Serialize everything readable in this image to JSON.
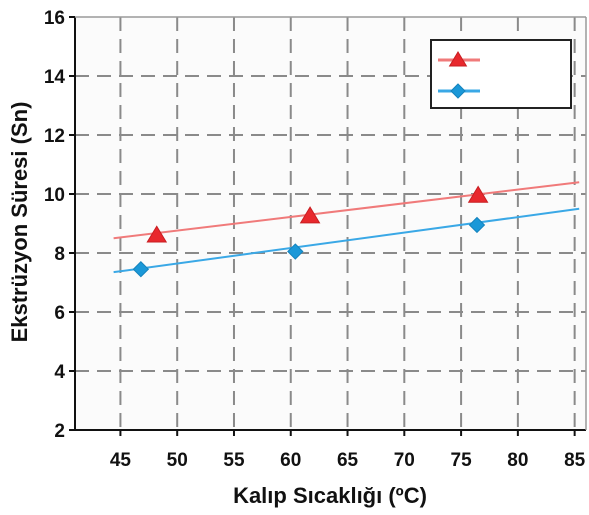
{
  "chart_data": {
    "type": "scatter",
    "title": "",
    "xlabel": "Kalıp Sıcaklığı (ºC)",
    "ylabel": "Ekstrüzyon Süresi (Sn)",
    "xlim": [
      41,
      86
    ],
    "ylim": [
      2,
      16
    ],
    "xticks": [
      "45",
      "50",
      "55",
      "60",
      "65",
      "70",
      "75",
      "80",
      "85"
    ],
    "yticks": [
      "2",
      "4",
      "6",
      "8",
      "10",
      "12",
      "14",
      "16"
    ],
    "grid": true,
    "legend_position": "top-right",
    "series": [
      {
        "marker": "triangle",
        "color": "#e8282d",
        "line_color": "#f07a7a",
        "points": [
          {
            "x": 48.2,
            "y": 8.6
          },
          {
            "x": 61.7,
            "y": 9.25
          },
          {
            "x": 76.5,
            "y": 9.95
          }
        ],
        "trend": [
          {
            "x": 44.4,
            "y": 8.5
          },
          {
            "x": 85.4,
            "y": 10.4
          }
        ]
      },
      {
        "marker": "diamond",
        "color": "#1b98d8",
        "line_color": "#3aa8e6",
        "points": [
          {
            "x": 46.8,
            "y": 7.45
          },
          {
            "x": 60.4,
            "y": 8.05
          },
          {
            "x": 76.4,
            "y": 8.95
          }
        ],
        "trend": [
          {
            "x": 44.4,
            "y": 7.35
          },
          {
            "x": 85.4,
            "y": 9.5
          }
        ]
      }
    ]
  }
}
